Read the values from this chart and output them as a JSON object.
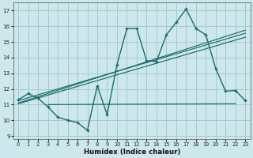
{
  "xlabel": "Humidex (Indice chaleur)",
  "xlim": [
    -0.5,
    23.5
  ],
  "ylim": [
    8.8,
    17.5
  ],
  "yticks": [
    9,
    10,
    11,
    12,
    13,
    14,
    15,
    16,
    17
  ],
  "xticks": [
    0,
    1,
    2,
    3,
    4,
    5,
    6,
    7,
    8,
    9,
    10,
    11,
    12,
    13,
    14,
    15,
    16,
    17,
    18,
    19,
    20,
    21,
    22,
    23
  ],
  "bg_color": "#cde8ec",
  "grid_color": "#a8c8cc",
  "line_color": "#1a6b6b",
  "main_line_x": [
    0,
    1,
    2,
    3,
    4,
    5,
    6,
    7,
    8,
    9,
    10,
    11,
    12,
    13,
    14,
    15,
    16,
    17,
    18,
    19,
    20,
    21,
    22,
    23
  ],
  "main_line_y": [
    11.3,
    11.7,
    11.4,
    10.85,
    10.2,
    10.0,
    9.85,
    9.35,
    12.2,
    10.35,
    13.55,
    15.85,
    15.85,
    13.8,
    13.75,
    15.45,
    16.25,
    17.1,
    15.85,
    15.45,
    13.3,
    11.85,
    11.9,
    11.25
  ],
  "flat_line_x": [
    3,
    22
  ],
  "flat_line_y": [
    11.0,
    11.05
  ],
  "trend1_x": [
    0,
    23
  ],
  "trend1_y": [
    11.25,
    15.55
  ],
  "trend2_x": [
    0,
    23
  ],
  "trend2_y": [
    11.1,
    15.75
  ],
  "trend3_x": [
    0,
    23
  ],
  "trend3_y": [
    11.05,
    15.3
  ]
}
